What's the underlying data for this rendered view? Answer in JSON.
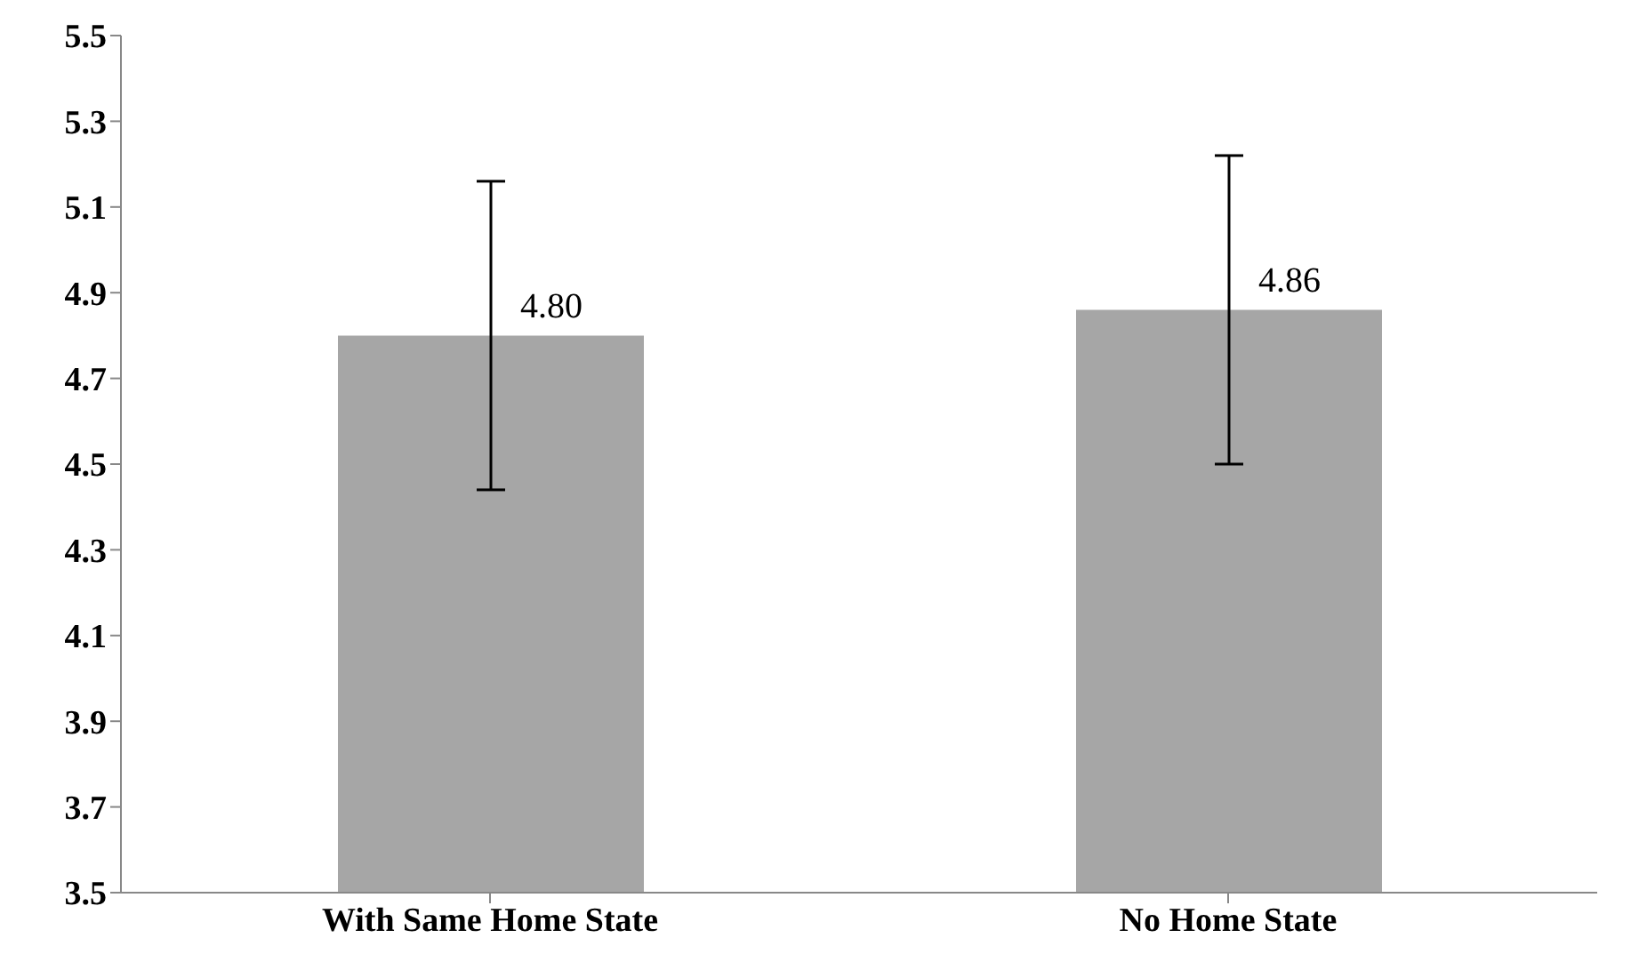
{
  "chart_data": {
    "type": "bar",
    "categories": [
      "With Same Home State",
      "No Home State"
    ],
    "values": [
      4.8,
      4.86
    ],
    "color": "#a6a6a6",
    "errors": [
      0.36,
      0.36
    ],
    "ylim": [
      3.5,
      5.5
    ],
    "yticks": [
      3.5,
      3.7,
      3.9,
      4.1,
      4.3,
      4.5,
      4.7,
      4.9,
      5.1,
      5.3,
      5.5
    ],
    "grid": false,
    "value_labels": [
      "4.80",
      "4.86"
    ]
  }
}
